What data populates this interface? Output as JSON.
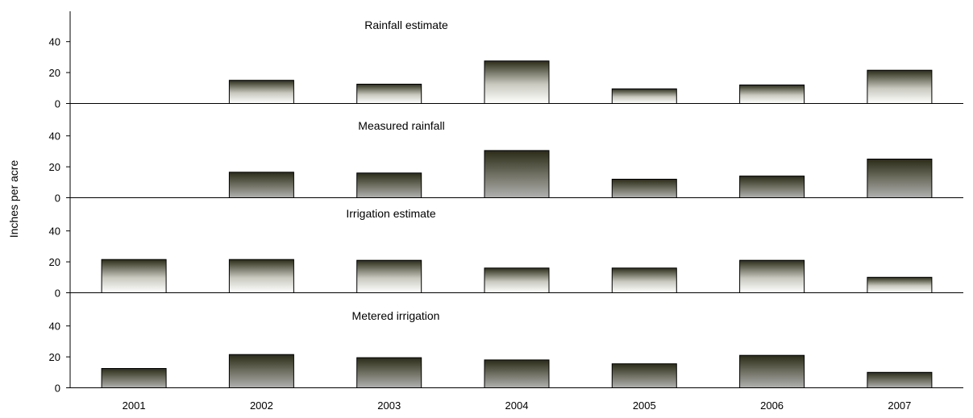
{
  "chart_data": {
    "type": "bar",
    "layout": "small-multiples",
    "ylabel": "Inches per acre",
    "categories": [
      "2001",
      "2002",
      "2003",
      "2004",
      "2005",
      "2006",
      "2007"
    ],
    "yticks": [
      0,
      20,
      40
    ],
    "ylim": [
      0,
      50
    ],
    "grid": false,
    "colors": {
      "bar_dark": "#2b2b18",
      "bar_light_end": "#ffffff",
      "bar_mid_end": "#a8a8a8",
      "axis": "#000000"
    },
    "panels": [
      {
        "title": "Rainfall estimate",
        "style": "light",
        "values": [
          null,
          15,
          12.5,
          27.5,
          9.5,
          12,
          21.5
        ]
      },
      {
        "title": "Measured rainfall",
        "style": "dark",
        "values": [
          null,
          16.5,
          16,
          30.5,
          12,
          14,
          25
        ]
      },
      {
        "title": "Irrigation estimate",
        "style": "light",
        "values": [
          21.5,
          21.5,
          21,
          16,
          16,
          21,
          10
        ]
      },
      {
        "title": "Metered irrigation",
        "style": "dark",
        "values": [
          12.5,
          21.5,
          19.5,
          18,
          15.5,
          21,
          10
        ]
      }
    ]
  }
}
